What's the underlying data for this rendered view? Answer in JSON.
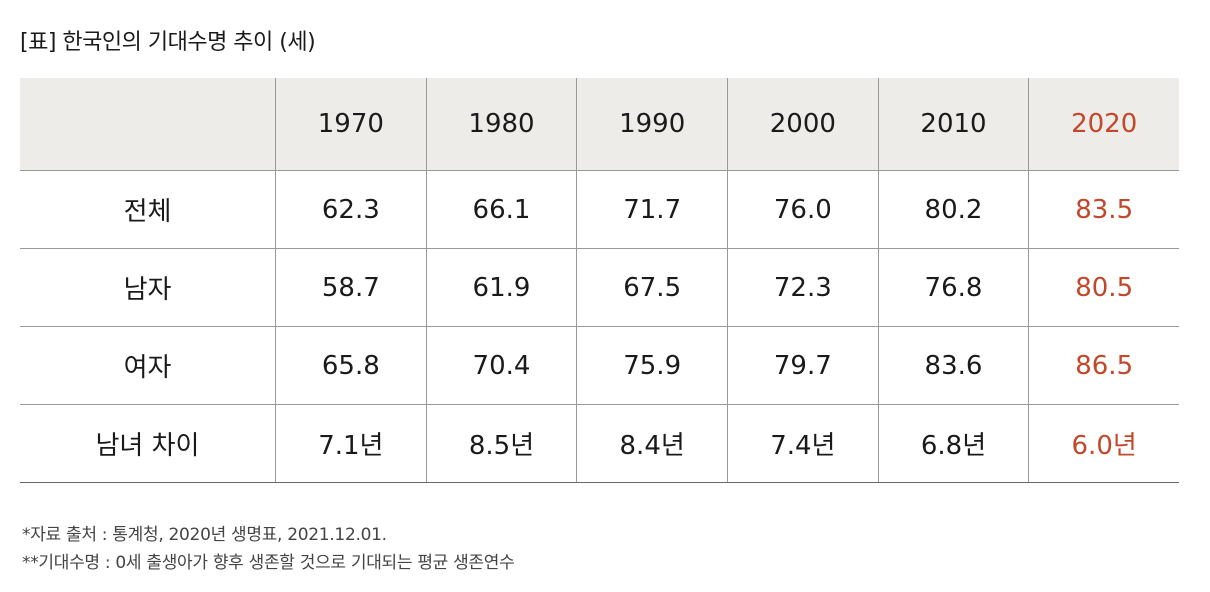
{
  "header": {
    "title": "[표] 한국인의 기대수명 추이 (세)"
  },
  "table": {
    "columns": [
      "1970",
      "1980",
      "1990",
      "2000",
      "2010",
      "2020"
    ],
    "rows": [
      {
        "label": "전체",
        "values": [
          "62.3",
          "66.1",
          "71.7",
          "76.0",
          "80.2",
          "83.5"
        ]
      },
      {
        "label": "남자",
        "values": [
          "58.7",
          "61.9",
          "67.5",
          "72.3",
          "76.8",
          "80.5"
        ]
      },
      {
        "label": "여자",
        "values": [
          "65.8",
          "70.4",
          "75.9",
          "79.7",
          "83.6",
          "86.5"
        ]
      },
      {
        "label": "남녀 차이",
        "values": [
          "7.1년",
          "8.5년",
          "8.4년",
          "7.4년",
          "6.8년",
          "6.0년"
        ]
      }
    ]
  },
  "footnotes": [
    "*자료 출처 : 통계청, 2020년 생명표, 2021.12.01.",
    "**기대수명 : 0세 출생아가 향후 생존할 것으로 기대되는 평균 생존연수"
  ]
}
